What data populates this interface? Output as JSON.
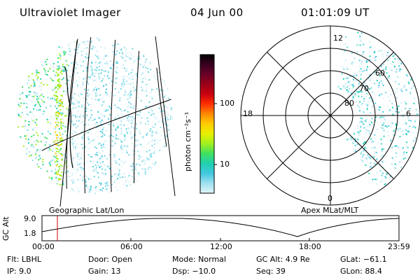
{
  "header": {
    "title": "Ultraviolet Imager",
    "date": "04 Jun 00",
    "time": "01:01:09 UT"
  },
  "colorbar": {
    "unit_label": "photon cm⁻²s⁻¹",
    "ticks": [
      "100",
      "10"
    ],
    "colors": [
      "#000000",
      "#3a0020",
      "#6a0028",
      "#9a0018",
      "#cc0010",
      "#ff3000",
      "#ff8a00",
      "#ffcc00",
      "#e8f000",
      "#a0f020",
      "#40e060",
      "#20d0b0",
      "#40c8e0",
      "#a0e0f0",
      "#e0f4f8"
    ]
  },
  "geo_panel": {
    "label": "Geographic Lat/Lon"
  },
  "polar_panel": {
    "label": "Apex MLat/MLT",
    "mlt_labels": [
      "12",
      "18",
      "6",
      "0"
    ],
    "lat_labels": [
      "60",
      "70",
      "80"
    ]
  },
  "timeline": {
    "axis_label": "GC Alt",
    "y_ticks": [
      "9.0",
      "1.8"
    ],
    "x_ticks": [
      "00:00",
      "06:00",
      "12:00",
      "18:00",
      "23:59"
    ],
    "marker_color": "#cc0000"
  },
  "status": {
    "flt": "Flt: LBHL",
    "ip": "IP:  9.0",
    "door": "Door: Open",
    "gain": "Gain: 13",
    "mode": "Mode: Normal",
    "dsp": "Dsp:  −10.0",
    "gc_alt": "GC Alt: 4.9 Re",
    "seq": "Seq: 39",
    "glat": "GLat: −61.1",
    "glon": "GLon:  88.4"
  }
}
